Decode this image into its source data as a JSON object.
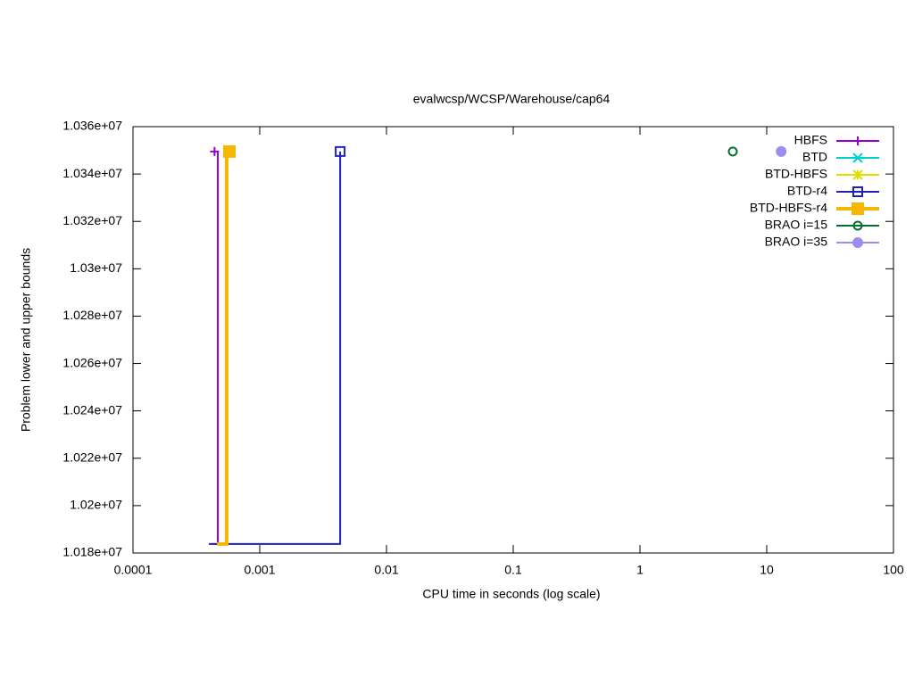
{
  "chart_data": {
    "type": "line",
    "title": "evalwcsp/WCSP/Warehouse/cap64",
    "xlabel": "CPU time in seconds (log scale)",
    "ylabel": "Problem lower and upper bounds",
    "xscale": "log",
    "legend": "top-right",
    "xlim": [
      0.0001,
      100
    ],
    "xticks": [
      0.0001,
      0.001,
      0.01,
      0.1,
      1,
      10,
      100
    ],
    "ylim": [
      10180000,
      10360000
    ],
    "yticks": [
      {
        "value": 10180000,
        "label": "1.018e+07"
      },
      {
        "value": 10200000,
        "label": "1.02e+07"
      },
      {
        "value": 10220000,
        "label": "1.022e+07"
      },
      {
        "value": 10240000,
        "label": "1.024e+07"
      },
      {
        "value": 10260000,
        "label": "1.026e+07"
      },
      {
        "value": 10280000,
        "label": "1.028e+07"
      },
      {
        "value": 10300000,
        "label": "1.03e+07"
      },
      {
        "value": 10320000,
        "label": "1.032e+07"
      },
      {
        "value": 10340000,
        "label": "1.034e+07"
      },
      {
        "value": 10360000,
        "label": "1.036e+07"
      }
    ],
    "series": [
      {
        "name": "HBFS",
        "color": "#9400d3",
        "point": "plus",
        "width": 2,
        "x": [
          0.00042,
          0.000467,
          0.000467
        ],
        "values": [
          10183800,
          10183800,
          10349500
        ],
        "upper_x": [
          0.00044
        ],
        "upper": [
          10349500
        ]
      },
      {
        "name": "BTD",
        "color": "#00d0d0",
        "point": "cross",
        "width": 2,
        "x": [],
        "values": [],
        "upper_x": [],
        "upper": []
      },
      {
        "name": "BTD-HBFS",
        "color": "#e0e000",
        "point": "star",
        "width": 2,
        "x": [],
        "values": [],
        "upper_x": [],
        "upper": []
      },
      {
        "name": "BTD-r4",
        "color": "#2020c0",
        "point": "open-square",
        "width": 2,
        "x": [
          0.000397,
          0.00431,
          0.00431
        ],
        "values": [
          10183800,
          10183800,
          10349500
        ],
        "upper_x": [
          0.00431
        ],
        "upper": [
          10349500
        ]
      },
      {
        "name": "BTD-HBFS-r4",
        "color": "#f5b800",
        "point": "filled-square",
        "width": 4,
        "x": [
          0.00046,
          0.000548,
          0.000548
        ],
        "values": [
          10183800,
          10183800,
          10349500
        ],
        "upper_x": [
          0.000576
        ],
        "upper": [
          10349500
        ]
      },
      {
        "name": "BRAO i=15",
        "color": "#007030",
        "point": "open-circle",
        "width": 2,
        "x": [],
        "values": [],
        "upper_x": [
          5.4
        ],
        "upper": [
          10349500
        ]
      },
      {
        "name": "BRAO i=35",
        "color": "#9e8cf0",
        "point": "filled-circle",
        "width": 2,
        "x": [],
        "values": [],
        "upper_x": [
          13
        ],
        "upper": [
          10349500
        ]
      }
    ]
  }
}
